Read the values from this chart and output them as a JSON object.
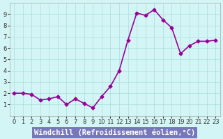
{
  "x": [
    0,
    1,
    2,
    3,
    4,
    5,
    6,
    7,
    8,
    9,
    10,
    11,
    12,
    13,
    14,
    15,
    16,
    17,
    18,
    19,
    20,
    21,
    22,
    23
  ],
  "y": [
    2.0,
    2.0,
    1.9,
    1.4,
    1.5,
    1.7,
    1.0,
    1.5,
    1.1,
    0.7,
    1.7,
    2.6,
    4.0,
    6.7,
    9.1,
    8.9,
    9.4,
    8.5,
    7.8,
    5.5,
    6.2,
    6.6,
    6.6,
    6.7
  ],
  "line_color": "#990099",
  "marker": "D",
  "marker_size": 2.5,
  "bg_color": "#d4f5f5",
  "grid_color": "#aadddd",
  "xlabel": "Windchill (Refroidissement éolien,°C)",
  "xlabel_color": "#ffffff",
  "xlabel_bg": "#7777bb",
  "ylim": [
    0,
    10
  ],
  "xlim_min": -0.5,
  "xlim_max": 23.5,
  "yticks": [
    1,
    2,
    3,
    4,
    5,
    6,
    7,
    8,
    9
  ],
  "xticks": [
    0,
    1,
    2,
    3,
    4,
    5,
    6,
    7,
    8,
    9,
    10,
    11,
    12,
    13,
    14,
    15,
    16,
    17,
    18,
    19,
    20,
    21,
    22,
    23
  ],
  "tick_fontsize": 6,
  "xlabel_fontsize": 7.5,
  "linewidth": 1.2
}
